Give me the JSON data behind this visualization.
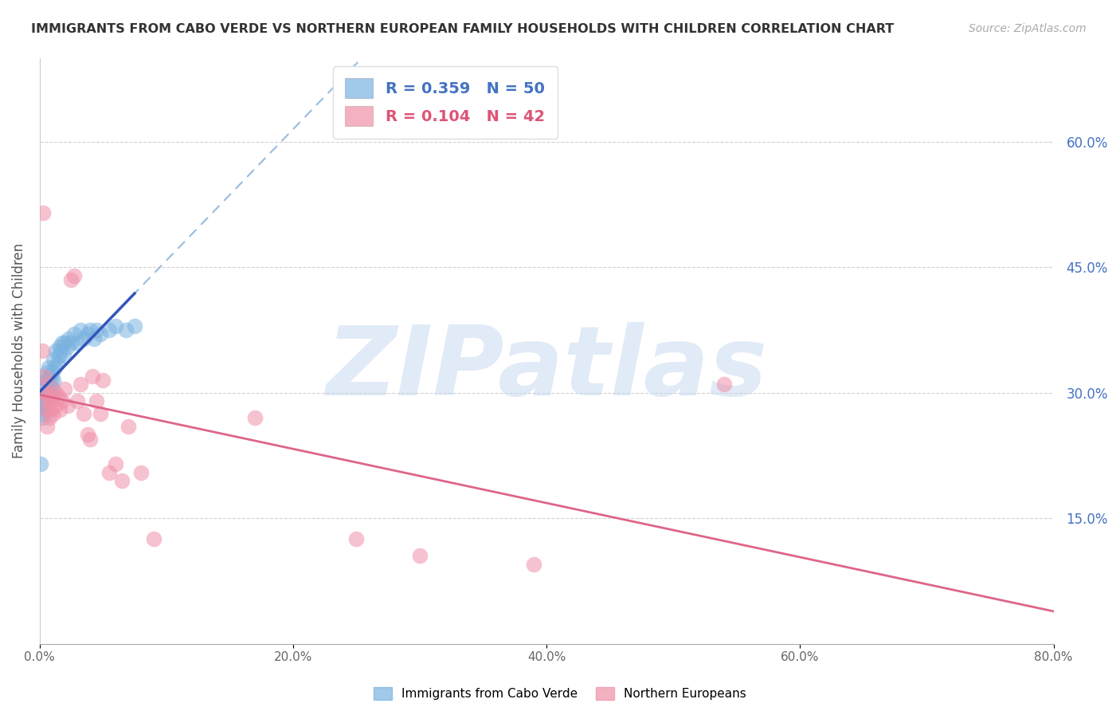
{
  "title": "IMMIGRANTS FROM CABO VERDE VS NORTHERN EUROPEAN FAMILY HOUSEHOLDS WITH CHILDREN CORRELATION CHART",
  "source": "Source: ZipAtlas.com",
  "ylabel": "Family Households with Children",
  "xlim": [
    0.0,
    0.8
  ],
  "ylim": [
    0.0,
    0.7
  ],
  "yticks": [
    0.15,
    0.3,
    0.45,
    0.6
  ],
  "ytick_labels": [
    "15.0%",
    "30.0%",
    "45.0%",
    "60.0%"
  ],
  "xticks": [
    0.0,
    0.2,
    0.4,
    0.6,
    0.8
  ],
  "xtick_labels": [
    "0.0%",
    "20.0%",
    "40.0%",
    "60.0%",
    "80.0%"
  ],
  "cabo_verde_R": 0.359,
  "cabo_verde_N": 50,
  "northern_eu_R": 0.104,
  "northern_eu_N": 42,
  "cabo_verde_color": "#7ab3e0",
  "northern_eu_color": "#f090a8",
  "regression_blue_color": "#3355bb",
  "regression_pink_color": "#dd6688",
  "dashed_line_color": "#99bbdd",
  "watermark_color": "#c5d8f0",
  "background_color": "#ffffff",
  "cabo_verde_x": [
    0.001,
    0.002,
    0.002,
    0.003,
    0.003,
    0.003,
    0.004,
    0.004,
    0.005,
    0.005,
    0.005,
    0.006,
    0.006,
    0.006,
    0.007,
    0.007,
    0.007,
    0.008,
    0.008,
    0.009,
    0.009,
    0.01,
    0.01,
    0.011,
    0.011,
    0.012,
    0.013,
    0.014,
    0.015,
    0.016,
    0.017,
    0.018,
    0.019,
    0.02,
    0.022,
    0.023,
    0.025,
    0.027,
    0.03,
    0.032,
    0.035,
    0.038,
    0.04,
    0.043,
    0.045,
    0.048,
    0.055,
    0.06,
    0.068,
    0.075
  ],
  "cabo_verde_y": [
    0.215,
    0.285,
    0.27,
    0.295,
    0.31,
    0.275,
    0.3,
    0.285,
    0.315,
    0.295,
    0.28,
    0.325,
    0.3,
    0.315,
    0.295,
    0.31,
    0.33,
    0.305,
    0.32,
    0.315,
    0.295,
    0.305,
    0.325,
    0.34,
    0.315,
    0.33,
    0.35,
    0.335,
    0.345,
    0.355,
    0.35,
    0.36,
    0.345,
    0.36,
    0.355,
    0.365,
    0.36,
    0.37,
    0.36,
    0.375,
    0.365,
    0.37,
    0.375,
    0.365,
    0.375,
    0.37,
    0.375,
    0.38,
    0.375,
    0.38
  ],
  "northern_eu_x": [
    0.002,
    0.003,
    0.004,
    0.005,
    0.005,
    0.006,
    0.006,
    0.007,
    0.007,
    0.008,
    0.009,
    0.01,
    0.011,
    0.012,
    0.013,
    0.015,
    0.016,
    0.018,
    0.02,
    0.022,
    0.025,
    0.027,
    0.03,
    0.032,
    0.035,
    0.038,
    0.04,
    0.042,
    0.045,
    0.048,
    0.05,
    0.055,
    0.06,
    0.065,
    0.07,
    0.08,
    0.09,
    0.17,
    0.39,
    0.54,
    0.25,
    0.3
  ],
  "northern_eu_y": [
    0.35,
    0.515,
    0.32,
    0.28,
    0.3,
    0.26,
    0.295,
    0.29,
    0.31,
    0.27,
    0.28,
    0.295,
    0.275,
    0.285,
    0.3,
    0.295,
    0.28,
    0.29,
    0.305,
    0.285,
    0.435,
    0.44,
    0.29,
    0.31,
    0.275,
    0.25,
    0.245,
    0.32,
    0.29,
    0.275,
    0.315,
    0.205,
    0.215,
    0.195,
    0.26,
    0.205,
    0.125,
    0.27,
    0.095,
    0.31,
    0.125,
    0.105
  ]
}
